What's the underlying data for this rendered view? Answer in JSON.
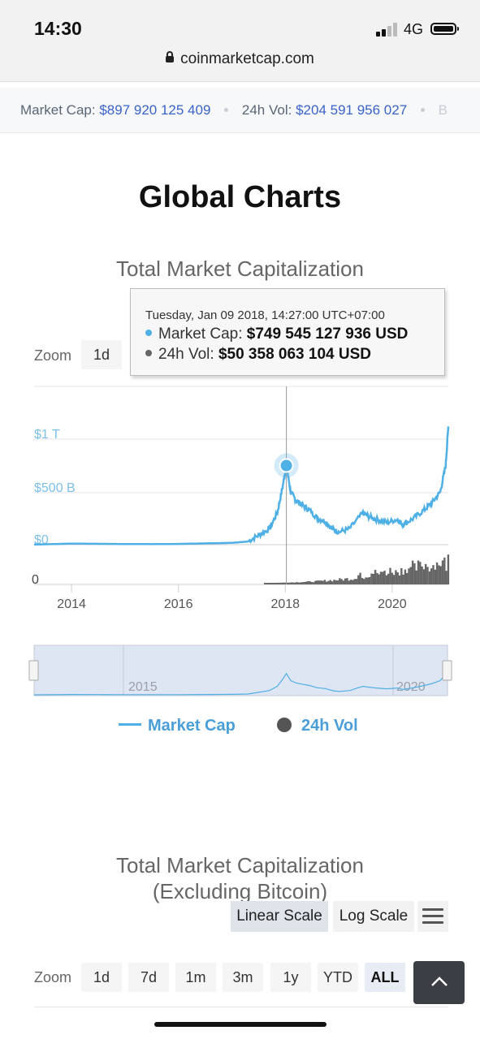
{
  "status_bar": {
    "time": "14:30",
    "network": "4G"
  },
  "browser": {
    "url": "coinmarketcap.com"
  },
  "ticker": {
    "market_cap_label": "Market Cap:",
    "market_cap_value": "$897 920 125 409",
    "vol_label": "24h Vol:",
    "vol_value": "$204 591 956 027",
    "next_label": "B"
  },
  "page": {
    "title": "Global Charts"
  },
  "chart1": {
    "title": "Total Market Capitalization",
    "zoom_label": "Zoom",
    "zoom_visible_button": "1d",
    "tooltip": {
      "date": "Tuesday, Jan 09 2018, 14:27:00 UTC+07:00",
      "market_cap_label": "Market Cap:",
      "market_cap_value": "$749 545 127 936 USD",
      "vol_label": "24h Vol:",
      "vol_value": "$50 358 063 104 USD"
    },
    "navigator_labels": [
      "2015",
      "2020"
    ],
    "legend": {
      "market_cap": "Market Cap",
      "vol": "24h Vol"
    }
  },
  "chart_data": {
    "type": "line",
    "x_ticks": [
      "2014",
      "2016",
      "2018",
      "2020"
    ],
    "y_ticks": [
      "$1 T",
      "$500 B",
      "$0"
    ],
    "vol_axis_tick": "0",
    "highlighted_point": {
      "date": "2018-01-09",
      "market_cap": 749545127936,
      "vol": 50358063104
    },
    "series": [
      {
        "name": "Market Cap",
        "color": "#4fb0e5",
        "x": [
          2013.3,
          2014.0,
          2014.5,
          2015.0,
          2015.5,
          2016.0,
          2016.5,
          2017.0,
          2017.3,
          2017.5,
          2017.7,
          2017.85,
          2017.95,
          2018.02,
          2018.1,
          2018.2,
          2018.3,
          2018.45,
          2018.6,
          2018.75,
          2018.9,
          2019.0,
          2019.2,
          2019.45,
          2019.55,
          2019.7,
          2019.9,
          2020.1,
          2020.2,
          2020.4,
          2020.6,
          2020.75,
          2020.9,
          2021.0,
          2021.05
        ],
        "values": [
          0.001,
          0.01,
          0.008,
          0.006,
          0.005,
          0.007,
          0.012,
          0.017,
          0.03,
          0.09,
          0.15,
          0.3,
          0.55,
          0.75,
          0.5,
          0.42,
          0.38,
          0.33,
          0.25,
          0.22,
          0.14,
          0.12,
          0.15,
          0.3,
          0.27,
          0.24,
          0.21,
          0.24,
          0.19,
          0.25,
          0.33,
          0.4,
          0.5,
          0.75,
          1.12
        ]
      }
    ],
    "xlim": [
      2013.3,
      2021.05
    ],
    "ylim": [
      0,
      1.2
    ],
    "y_unit": "trillion USD"
  },
  "chart2": {
    "title_line1": "Total Market Capitalization",
    "title_line2": "(Excluding Bitcoin)",
    "scale_buttons": [
      "Linear Scale",
      "Log Scale"
    ],
    "zoom_label": "Zoom",
    "zoom_buttons": [
      "1d",
      "7d",
      "1m",
      "3m",
      "1y",
      "YTD",
      "ALL"
    ]
  },
  "colors": {
    "series": "#4fb0e5",
    "volume": "#666666",
    "link": "#3a63c8"
  }
}
